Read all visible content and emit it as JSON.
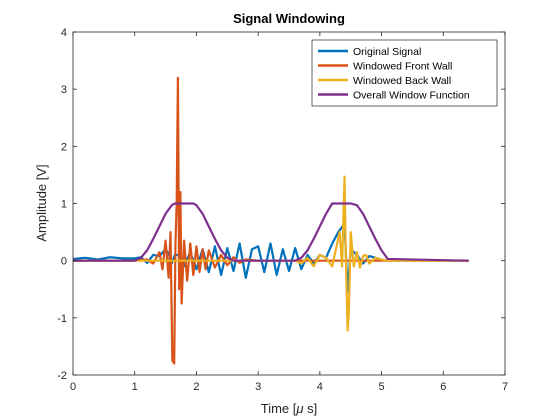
{
  "chart_data": {
    "type": "line",
    "title": "Signal Windowing",
    "xlabel": "Time [",
    "xlabel_mu": "μ",
    "xlabel_rest": " s]",
    "ylabel": "Amplitude [V]",
    "xlim": [
      0,
      7
    ],
    "ylim": [
      -2,
      4
    ],
    "xticks": [
      "0",
      "1",
      "2",
      "3",
      "4",
      "5",
      "6",
      "7"
    ],
    "yticks": [
      "-2",
      "-1",
      "0",
      "1",
      "2",
      "3",
      "4"
    ],
    "legend_position": "top-right",
    "series": [
      {
        "name": "Original Signal",
        "color": "#0072BD",
        "x": [
          0,
          0.2,
          0.4,
          0.6,
          0.8,
          1.0,
          1.1,
          1.2,
          1.3,
          1.4,
          1.5,
          1.55,
          1.6,
          1.65,
          1.7,
          1.75,
          1.8,
          1.9,
          2.0,
          2.1,
          2.2,
          2.3,
          2.4,
          2.5,
          2.6,
          2.7,
          2.8,
          2.9,
          3.0,
          3.1,
          3.2,
          3.3,
          3.4,
          3.5,
          3.6,
          3.7,
          3.8,
          3.9,
          4.0,
          4.1,
          4.2,
          4.3,
          4.4,
          4.45,
          4.5,
          4.6,
          4.7,
          4.8,
          5.0,
          5.1
        ],
        "y": [
          0.03,
          0.05,
          0.02,
          0.06,
          0.04,
          0.04,
          0.06,
          -0.04,
          0.1,
          0.08,
          0.2,
          0.12,
          -0.05,
          0.1,
          0.1,
          0.02,
          -0.1,
          0.15,
          -0.15,
          0.2,
          -0.2,
          0.25,
          -0.25,
          0.22,
          -0.18,
          0.3,
          -0.3,
          0.2,
          0.25,
          -0.2,
          0.3,
          -0.25,
          0.2,
          -0.18,
          0.22,
          -0.15,
          0.1,
          -0.05,
          0.1,
          0.05,
          0.3,
          0.5,
          0.65,
          -0.55,
          0.2,
          0.1,
          -0.05,
          0.08,
          0.02,
          0.0
        ]
      },
      {
        "name": "Windowed Front Wall",
        "color": "#D95319",
        "x": [
          0,
          1.0,
          1.2,
          1.3,
          1.4,
          1.45,
          1.5,
          1.55,
          1.58,
          1.61,
          1.64,
          1.66,
          1.68,
          1.7,
          1.72,
          1.74,
          1.76,
          1.8,
          1.85,
          1.9,
          1.95,
          2.0,
          2.05,
          2.1,
          2.15,
          2.2,
          2.3,
          2.4,
          2.5,
          2.6,
          2.7,
          2.8,
          3.0,
          3.5,
          4.0,
          6.4
        ],
        "y": [
          0,
          0,
          0.02,
          -0.05,
          0.15,
          -0.15,
          0.35,
          -0.3,
          0.5,
          -1.75,
          -1.8,
          0.3,
          1.0,
          3.2,
          -0.5,
          1.2,
          -0.75,
          0.35,
          -0.35,
          0.3,
          -0.25,
          0.25,
          -0.2,
          0.2,
          -0.15,
          0.18,
          -0.12,
          0.1,
          -0.08,
          0.06,
          -0.04,
          0.02,
          0,
          0,
          0,
          0
        ]
      },
      {
        "name": "Windowed Back Wall",
        "color": "#EDB120",
        "x": [
          0,
          3.0,
          3.6,
          3.7,
          3.8,
          3.9,
          4.0,
          4.1,
          4.2,
          4.28,
          4.32,
          4.36,
          4.4,
          4.42,
          4.45,
          4.47,
          4.5,
          4.55,
          4.6,
          4.65,
          4.7,
          4.75,
          4.8,
          4.9,
          5.0,
          5.1,
          6.4
        ],
        "y": [
          0,
          0,
          0,
          -0.05,
          0.05,
          -0.1,
          0.1,
          0.05,
          -0.1,
          0.3,
          0.5,
          -0.1,
          1.47,
          0.1,
          -1.22,
          -0.9,
          0.5,
          -0.1,
          0.15,
          -0.12,
          0.08,
          0.1,
          -0.05,
          0.05,
          0.02,
          0,
          0
        ]
      },
      {
        "name": "Overall Window Function",
        "color": "#7E2F8E",
        "x": [
          0,
          1.0,
          1.1,
          1.2,
          1.3,
          1.4,
          1.5,
          1.6,
          1.65,
          1.95,
          2.0,
          2.1,
          2.2,
          2.3,
          2.4,
          2.5,
          2.6,
          3.6,
          3.7,
          3.8,
          3.9,
          4.0,
          4.1,
          4.2,
          4.5,
          4.6,
          4.7,
          4.8,
          4.9,
          5.0,
          5.1,
          6.4
        ],
        "y": [
          0,
          0,
          0.05,
          0.18,
          0.38,
          0.6,
          0.82,
          0.97,
          1.0,
          1.0,
          0.97,
          0.82,
          0.6,
          0.38,
          0.18,
          0.05,
          0,
          0,
          0.05,
          0.18,
          0.38,
          0.6,
          0.82,
          1.0,
          1.0,
          0.97,
          0.82,
          0.6,
          0.38,
          0.18,
          0.03,
          0
        ]
      }
    ]
  }
}
